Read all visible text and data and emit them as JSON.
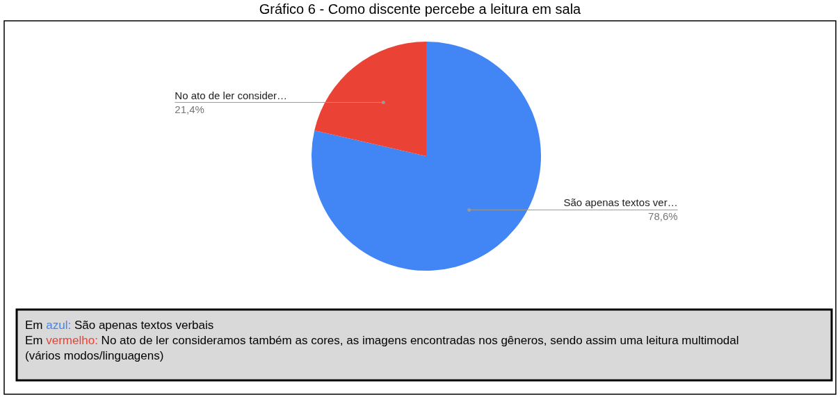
{
  "chart_data": {
    "type": "pie",
    "title": "Gráfico 6 - Como discente percebe a leitura em sala",
    "categories": [
      "São apenas textos ver…",
      "No ato de ler consider…"
    ],
    "values": [
      78.6,
      21.4
    ],
    "colors": [
      "#4285f4",
      "#ea4335"
    ],
    "value_labels": [
      "78,6%",
      "21,4%"
    ],
    "annotations": [
      "Em azul: São apenas textos verbais",
      "Em vermelho: No ato de ler consideramos também as cores, as imagens encontradas nos gêneros, sendo assim uma leitura multimodal (vários modos/linguagens)"
    ]
  }
}
